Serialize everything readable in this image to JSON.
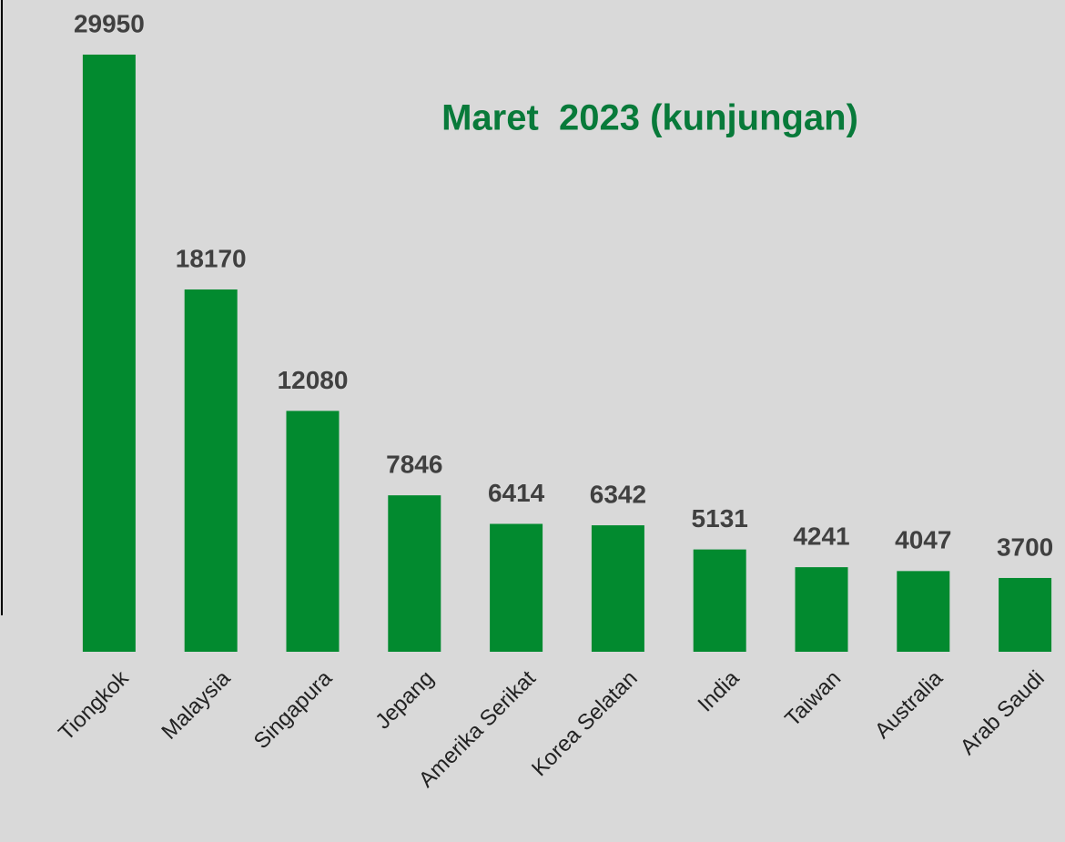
{
  "chart_data": {
    "type": "bar",
    "title": "Maret  2023 (kunjungan)",
    "categories": [
      "Tiongkok",
      "Malaysia",
      "Singapura",
      "Jepang",
      "Amerika Serikat",
      "Korea Selatan",
      "India",
      "Taiwan",
      "Australia",
      "Arab Saudi"
    ],
    "values": [
      29950,
      18170,
      12080,
      7846,
      6414,
      6342,
      5131,
      4241,
      4047,
      3700
    ],
    "color": "#028a2f"
  }
}
